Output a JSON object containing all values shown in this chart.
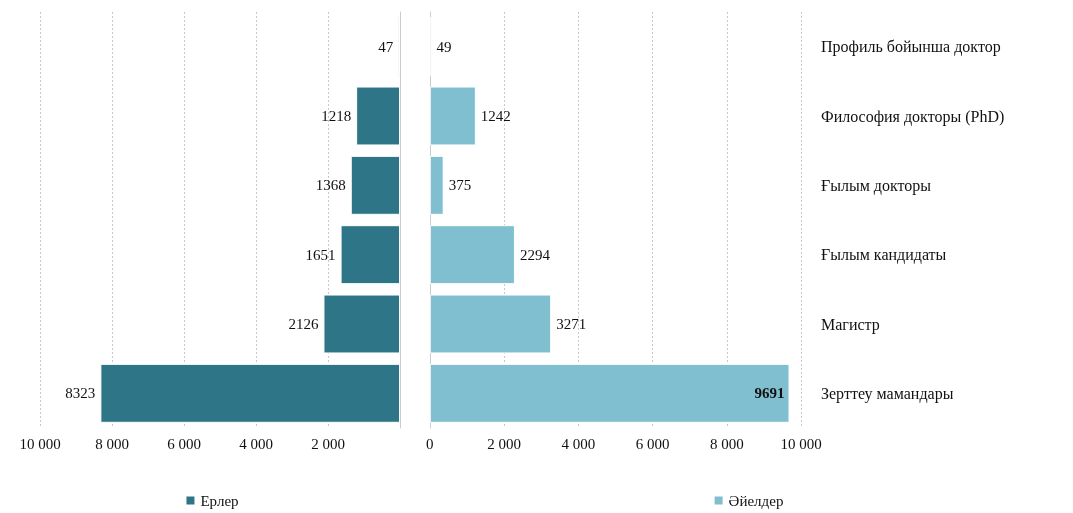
{
  "chart_data": [
    {
      "type": "bar",
      "orientation": "horizontal",
      "data_labels": true,
      "grid": "x",
      "legend": "bottom",
      "categories": [
        null,
        null,
        null,
        null,
        null,
        null
      ],
      "series": [
        {
          "name": "Ерлер",
          "color": "#2e7687",
          "values": [
            47,
            1218,
            1368,
            1651,
            2126,
            8323
          ]
        }
      ],
      "xlim": [
        10000,
        0
      ],
      "xticks": [
        {
          "value": 10000,
          "label": "10 000"
        },
        {
          "value": 8000,
          "label": "8 000"
        },
        {
          "value": 6000,
          "label": "6 000"
        },
        {
          "value": 4000,
          "label": "4 000"
        },
        {
          "value": 2000,
          "label": "2 000"
        }
      ]
    },
    {
      "type": "bar",
      "orientation": "horizontal",
      "data_labels": true,
      "grid": "x",
      "legend": "bottom",
      "categories": [
        "Профиль бойынша доктор",
        "Философия докторы (PhD)",
        "Ғылым докторы",
        "Ғылым кандидаты",
        "Магистр",
        "Зерттеу мамандары"
      ],
      "series": [
        {
          "name": "Әйелдер",
          "color": "#7fbfd0",
          "values": [
            49,
            1242,
            375,
            2294,
            3271,
            9691
          ]
        }
      ],
      "xlim": [
        0,
        10000
      ],
      "xticks": [
        0,
        {
          "value": 2000,
          "label": "2 000"
        },
        {
          "value": 4000,
          "label": "4 000"
        },
        {
          "value": 6000,
          "label": "6 000"
        },
        {
          "value": 8000,
          "label": "8 000"
        },
        {
          "value": 10000,
          "label": "10 000"
        }
      ]
    }
  ]
}
